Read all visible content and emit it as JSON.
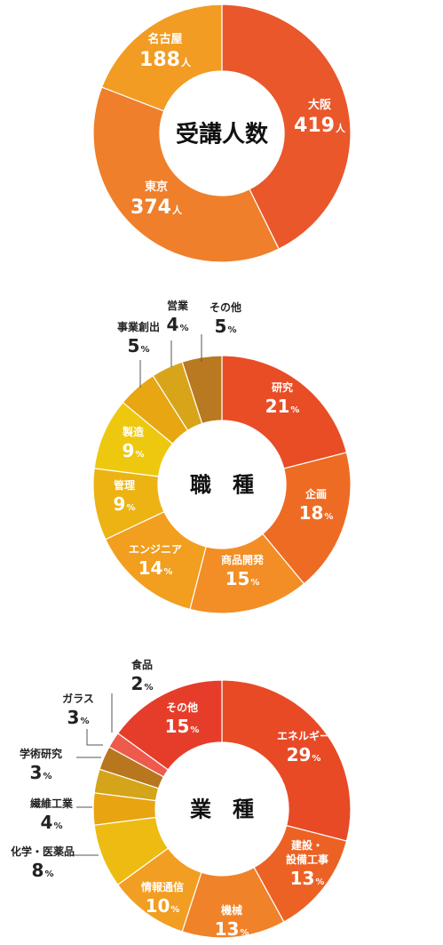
{
  "chart_data": [
    {
      "type": "donut",
      "title": "受講人数",
      "unit": "人",
      "categories": [
        "大阪",
        "東京",
        "名古屋"
      ],
      "values": [
        419,
        374,
        188
      ],
      "colors": [
        "#e9572b",
        "#ef7f2a",
        "#f29c23"
      ]
    },
    {
      "type": "donut",
      "title": "職　種",
      "unit": "%",
      "categories": [
        "研究",
        "企画",
        "商品開発",
        "エンジニア",
        "管理",
        "製造",
        "事業創出",
        "営業",
        "その他"
      ],
      "values": [
        21,
        18,
        15,
        14,
        9,
        9,
        5,
        4,
        5
      ],
      "colors": [
        "#e84d26",
        "#ee6b24",
        "#f28e25",
        "#f29e1e",
        "#ecb313",
        "#edc80f",
        "#e8a612",
        "#d8a51a",
        "#b87920"
      ]
    },
    {
      "type": "donut",
      "title": "業　種",
      "unit": "%",
      "categories": [
        "エネルギー",
        "建設・設備工事",
        "機械",
        "情報通信",
        "化学・医薬品",
        "繊維工業",
        "学術研究",
        "ガラス",
        "食品",
        "その他"
      ],
      "values": [
        29,
        13,
        13,
        10,
        8,
        4,
        3,
        3,
        2,
        15
      ],
      "colors": [
        "#e84a26",
        "#ec6224",
        "#f0822a",
        "#f29e22",
        "#edbb12",
        "#e9a412",
        "#d4a41a",
        "#b8761f",
        "#ee5a4c",
        "#e63d2a"
      ]
    }
  ]
}
